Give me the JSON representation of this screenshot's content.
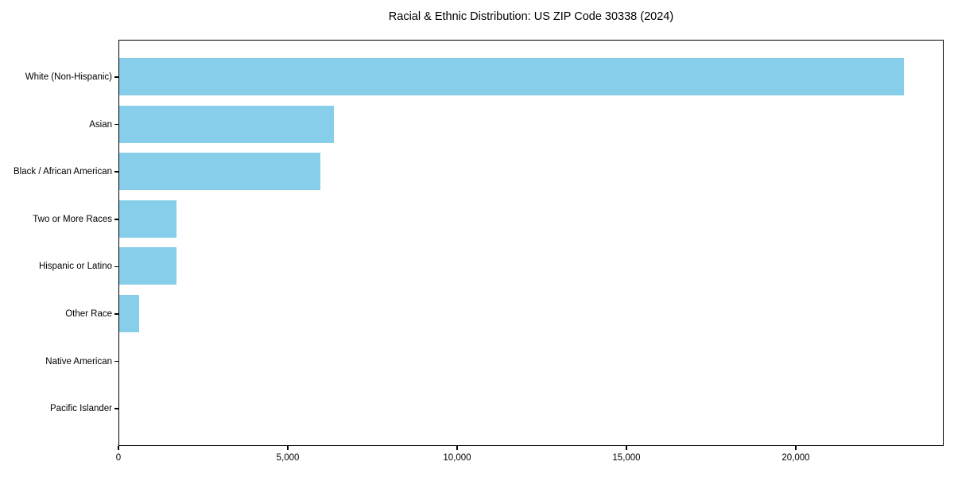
{
  "chart_data": {
    "type": "bar",
    "orientation": "horizontal",
    "title": "Racial & Ethnic Distribution: US ZIP Code 30338 (2024)",
    "categories": [
      "White (Non-Hispanic)",
      "Asian",
      "Black / African American",
      "Two or More Races",
      "Hispanic or Latino",
      "Other Race",
      "Native American",
      "Pacific Islander"
    ],
    "values": [
      23170,
      6340,
      5940,
      1680,
      1700,
      590,
      0,
      0
    ],
    "xlabel": "",
    "ylabel": "",
    "xlim": [
      0,
      24366
    ],
    "x_ticks": [
      0,
      5000,
      10000,
      15000,
      20000
    ],
    "x_tick_labels": [
      "0",
      "5,000",
      "10,000",
      "15,000",
      "20,000"
    ],
    "grid": false,
    "legend": null,
    "bar_color": "#87CEEB",
    "axis_color": "#000000",
    "background_color": "#ffffff"
  }
}
